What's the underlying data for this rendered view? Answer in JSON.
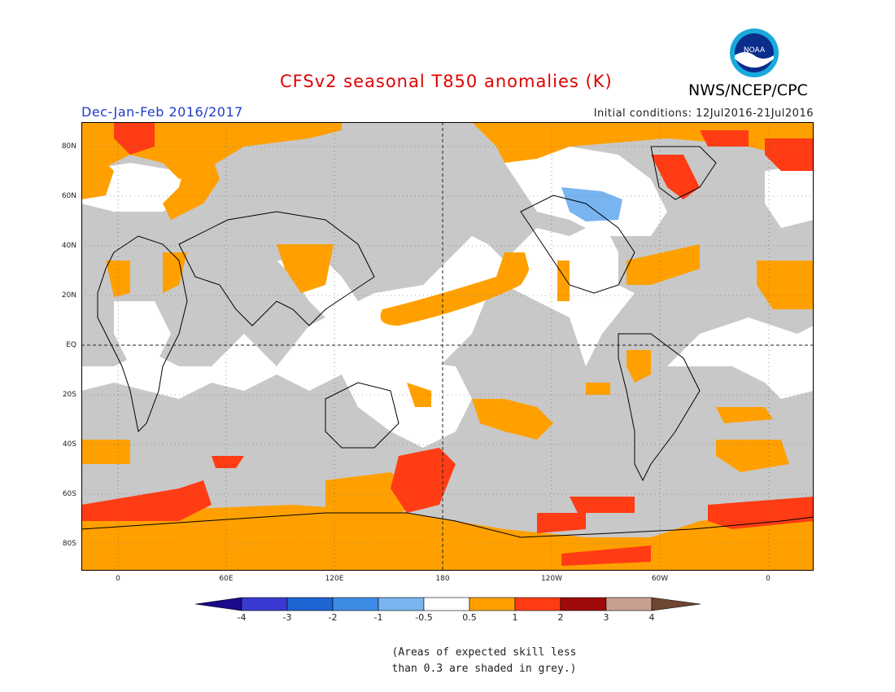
{
  "header": {
    "title": "CFSv2 seasonal T850 anomalies (K)",
    "org": "NWS/NCEP/CPC",
    "season": "Dec-Jan-Feb 2016/2017",
    "initial_conditions": "Initial conditions: 12Jul2016-21Jul2016",
    "logo_text": "NOAA"
  },
  "map": {
    "lat_labels": [
      "80N",
      "60N",
      "40N",
      "20N",
      "EQ",
      "20S",
      "40S",
      "60S",
      "80S"
    ],
    "lon_labels": [
      "0",
      "60E",
      "120E",
      "180",
      "120W",
      "60W",
      "0"
    ]
  },
  "colorbar": {
    "ticks": [
      "-4",
      "-3",
      "-2",
      "-1",
      "-0.5",
      "0.5",
      "1",
      "2",
      "3",
      "4"
    ],
    "colors": {
      "below_min": "#1a0a8c",
      "c1": "#3a3ad2",
      "c2": "#1e64d2",
      "c3": "#3c8ce6",
      "c4": "#78b4f0",
      "c5": "#ffffff",
      "c6": "#ffa000",
      "c7": "#ff3c14",
      "c8": "#a00a0a",
      "c9": "#c8a090",
      "above_max": "#6e4632"
    }
  },
  "note": {
    "line1": "(Areas of expected skill less",
    "line2": "than 0.3 are shaded in grey.)"
  },
  "colors": {
    "title": "#e00000",
    "season": "#1e3cc8",
    "grey_mask": "#c8c8c8"
  }
}
